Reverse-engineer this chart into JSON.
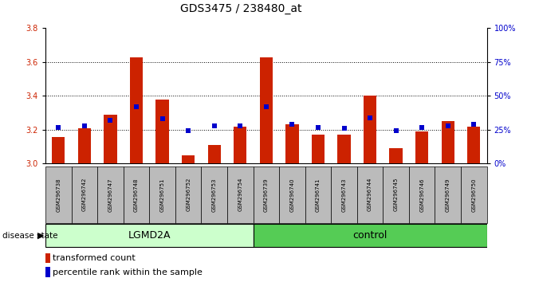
{
  "title": "GDS3475 / 238480_at",
  "samples": [
    "GSM296738",
    "GSM296742",
    "GSM296747",
    "GSM296748",
    "GSM296751",
    "GSM296752",
    "GSM296753",
    "GSM296754",
    "GSM296739",
    "GSM296740",
    "GSM296741",
    "GSM296743",
    "GSM296744",
    "GSM296745",
    "GSM296746",
    "GSM296749",
    "GSM296750"
  ],
  "red_values": [
    3.155,
    3.21,
    3.29,
    3.63,
    3.38,
    3.05,
    3.11,
    3.22,
    3.63,
    3.23,
    3.17,
    3.17,
    3.4,
    3.09,
    3.19,
    3.25,
    3.22
  ],
  "blue_values": [
    3.215,
    3.225,
    3.255,
    3.335,
    3.265,
    3.195,
    3.225,
    3.225,
    3.335,
    3.23,
    3.215,
    3.21,
    3.27,
    3.195,
    3.215,
    3.225,
    3.23
  ],
  "group_labels": [
    "LGMD2A",
    "control"
  ],
  "lgmd2a_count": 8,
  "ylim_left": [
    3.0,
    3.8
  ],
  "ylim_right": [
    0,
    100
  ],
  "yticks_left": [
    3.0,
    3.2,
    3.4,
    3.6,
    3.8
  ],
  "yticks_right": [
    0,
    25,
    50,
    75,
    100
  ],
  "ytick_labels_right": [
    "0%",
    "25%",
    "50%",
    "75%",
    "100%"
  ],
  "grid_lines": [
    3.2,
    3.4,
    3.6
  ],
  "bar_color": "#cc2200",
  "dot_color": "#0000cc",
  "bar_width": 0.5,
  "baseline": 3.0,
  "lgmd2a_color": "#ccffcc",
  "control_color": "#55cc55",
  "sample_box_color": "#bbbbbb",
  "legend_items": [
    "transformed count",
    "percentile rank within the sample"
  ],
  "left_tick_color": "#cc2200",
  "right_tick_color": "#0000cc",
  "title_fontsize": 10,
  "tick_fontsize": 7,
  "sample_fontsize": 5,
  "group_fontsize": 9,
  "legend_fontsize": 8
}
